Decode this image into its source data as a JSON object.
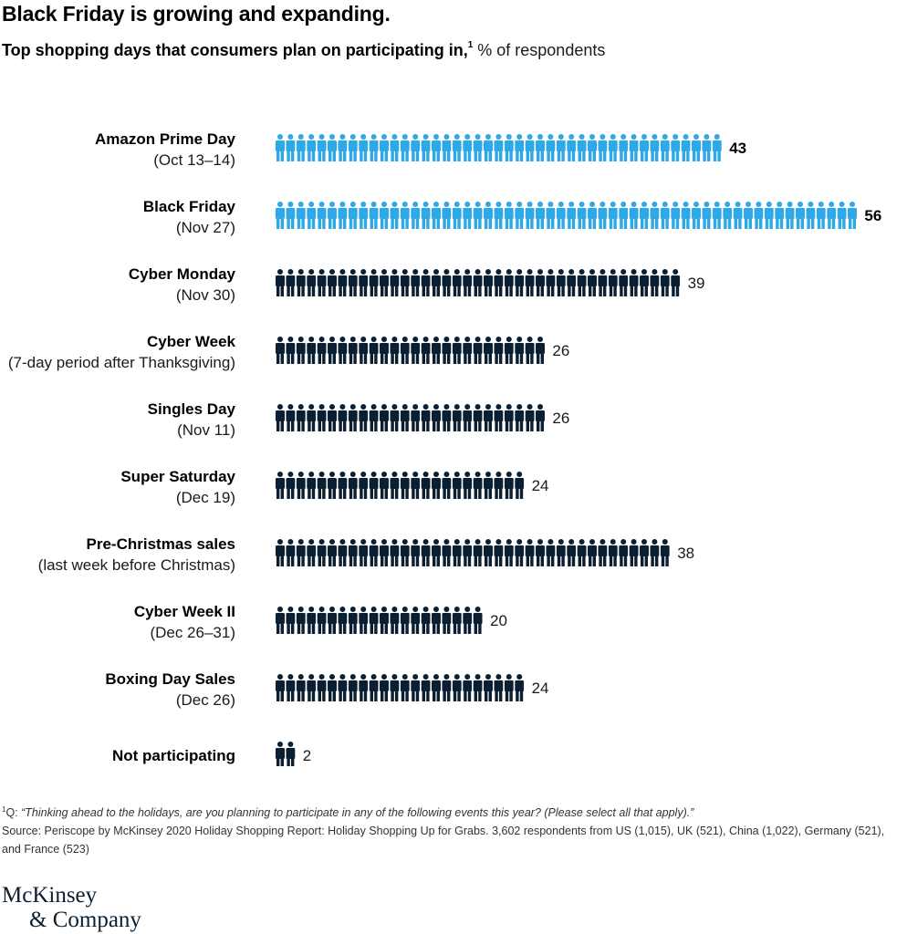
{
  "title": "Black Friday is growing and expanding.",
  "subtitle": {
    "main": "Top shopping days that consumers plan on participating in,",
    "footnote_marker": "1",
    "unit": " % of respondents"
  },
  "colors": {
    "highlight": "#2ea8e6",
    "default": "#0b1f33"
  },
  "icon": "person-icon",
  "chart_data": {
    "type": "pictogram-bar",
    "unit": "% of respondents",
    "categories": [
      {
        "name": "Amazon Prime Day",
        "sub": "(Oct  13–14)",
        "value": 43,
        "label": "43",
        "highlight": true
      },
      {
        "name": "Black Friday",
        "sub": "(Nov 27)",
        "value": 56,
        "label": "56",
        "highlight": true
      },
      {
        "name": "Cyber Monday",
        "sub": "(Nov 30)",
        "value": 39,
        "label": "39",
        "highlight": false
      },
      {
        "name": "Cyber Week",
        "sub": "(7-day period after Thanksgiving)",
        "value": 26,
        "label": "26",
        "highlight": false
      },
      {
        "name": "Singles Day",
        "sub": "(Nov 11)",
        "value": 26,
        "label": "26",
        "highlight": false
      },
      {
        "name": "Super Saturday",
        "sub": "(Dec 19)",
        "value": 24,
        "label": "24",
        "highlight": false
      },
      {
        "name": "Pre-Christmas sales",
        "sub": "(last week before Christmas)",
        "value": 38,
        "label": "38",
        "highlight": false
      },
      {
        "name": "Cyber Week II",
        "sub": "(Dec 26–31)",
        "value": 20,
        "label": "20",
        "highlight": false
      },
      {
        "name": "Boxing Day Sales",
        "sub": "(Dec 26)",
        "value": 24,
        "label": "24",
        "highlight": false
      },
      {
        "name": "Not participating",
        "sub": "",
        "value": 2,
        "label": "2",
        "highlight": false
      }
    ]
  },
  "footnote": {
    "marker": "1",
    "prefix": "Q: ",
    "question": "“Thinking ahead to the holidays, are you planning to participate in any of the following events this year? (Please select all that apply).”",
    "source": "Source: Periscope by McKinsey 2020 Holiday Shopping Report: Holiday Shopping Up for Grabs. 3,602 respondents from US (1,015), UK (521), China (1,022), Germany (521), and France (523)"
  },
  "logo": {
    "line1": "McKinsey",
    "line2": "& Company"
  }
}
